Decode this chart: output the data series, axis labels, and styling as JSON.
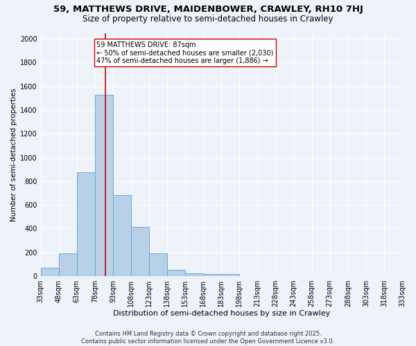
{
  "title1": "59, MATTHEWS DRIVE, MAIDENBOWER, CRAWLEY, RH10 7HJ",
  "title2": "Size of property relative to semi-detached houses in Crawley",
  "xlabel": "Distribution of semi-detached houses by size in Crawley",
  "ylabel": "Number of semi-detached properties",
  "bin_edges": [
    33,
    48,
    63,
    78,
    93,
    108,
    123,
    138,
    153,
    168,
    183,
    198,
    213,
    228,
    243,
    258,
    273,
    288,
    303,
    318,
    333
  ],
  "bar_heights": [
    70,
    195,
    875,
    1530,
    680,
    415,
    195,
    55,
    25,
    20,
    20,
    0,
    0,
    0,
    0,
    0,
    0,
    0,
    0,
    0
  ],
  "bar_color": "#b8d0e8",
  "bar_edgecolor": "#6aaad4",
  "property_size": 87,
  "red_line_color": "#cc0000",
  "annotation_line1": "59 MATTHEWS DRIVE: 87sqm",
  "annotation_line2": "← 50% of semi-detached houses are smaller (2,030)",
  "annotation_line3": "47% of semi-detached houses are larger (1,886) →",
  "annotation_box_edgecolor": "#cc0000",
  "annotation_box_facecolor": "white",
  "ylim": [
    0,
    2050
  ],
  "yticks": [
    0,
    200,
    400,
    600,
    800,
    1000,
    1200,
    1400,
    1600,
    1800,
    2000
  ],
  "background_color": "#eef2f9",
  "grid_color": "#ffffff",
  "footer_text": "Contains HM Land Registry data © Crown copyright and database right 2025.\nContains public sector information licensed under the Open Government Licence v3.0.",
  "title1_fontsize": 9.5,
  "title2_fontsize": 8.5,
  "xlabel_fontsize": 8,
  "ylabel_fontsize": 7.5,
  "tick_fontsize": 7,
  "annotation_fontsize": 7,
  "footer_fontsize": 6
}
